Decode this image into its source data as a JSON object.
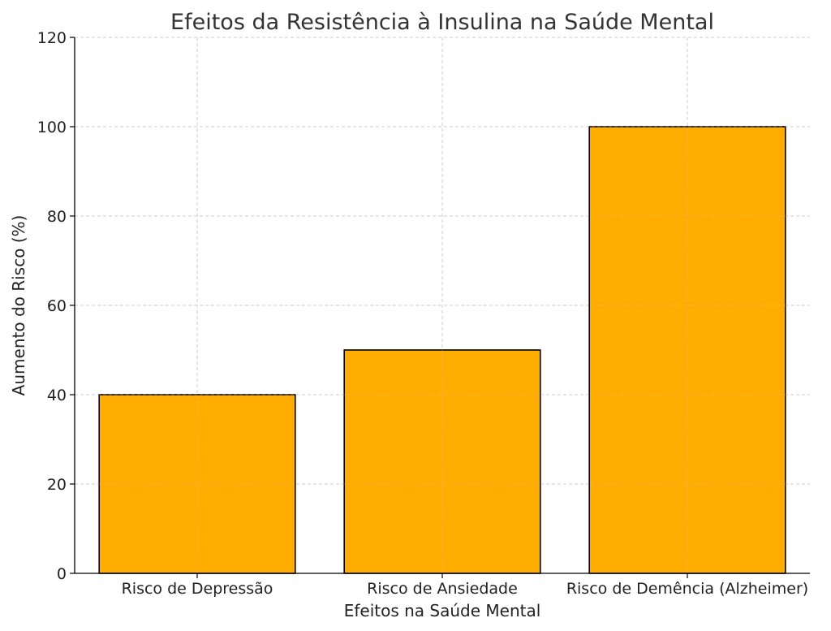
{
  "chart_data": {
    "type": "bar",
    "title": "Efeitos da Resistência à Insulina na Saúde Mental",
    "xlabel": "Efeitos na Saúde Mental",
    "ylabel": "Aumento do Risco (%)",
    "categories": [
      "Risco de Depressão",
      "Risco de Ansiedade",
      "Risco de Demência (Alzheimer)"
    ],
    "values": [
      40,
      50,
      100
    ],
    "ylim": [
      0,
      120
    ],
    "yticks": [
      0,
      20,
      40,
      60,
      80,
      100,
      120
    ],
    "grid": true,
    "bar_color": "#FFAD00",
    "bar_edge_color": "#000000"
  }
}
